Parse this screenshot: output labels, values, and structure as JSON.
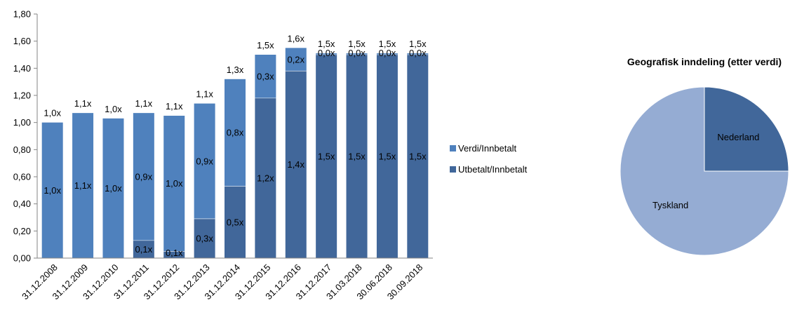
{
  "chart_data": [
    {
      "type": "bar",
      "stacked": true,
      "categories": [
        "31.12.2008",
        "31.12.2009",
        "31.12.2010",
        "31.12.2011",
        "31.12.2012",
        "31.12.2013",
        "31.12.2014",
        "31.12.2015",
        "31.12.2016",
        "31.12.2017",
        "31.03.2018",
        "30.06.2018",
        "30.09.2018"
      ],
      "series": [
        {
          "name": "Utbetalt/Innbetalt",
          "color": "#41679a",
          "values": [
            0.0,
            0.0,
            0.0,
            0.13,
            0.05,
            0.29,
            0.53,
            1.18,
            1.38,
            1.5,
            1.5,
            1.5,
            1.5
          ],
          "labels": [
            "",
            "",
            "",
            "0,1x",
            "0,1x",
            "0,3x",
            "0,5x",
            "1,2x",
            "1,4x",
            "1,5x",
            "1,5x",
            "1,5x",
            "1,5x"
          ]
        },
        {
          "name": "Verdi/Innbetalt",
          "color": "#4f81bd",
          "values": [
            1.0,
            1.07,
            1.03,
            0.94,
            1.0,
            0.85,
            0.79,
            0.32,
            0.17,
            0.01,
            0.01,
            0.01,
            0.01
          ],
          "labels": [
            "1,0x",
            "1,1x",
            "1,0x",
            "0,9x",
            "1,0x",
            "0,9x",
            "0,8x",
            "0,3x",
            "0,2x",
            "0,0x",
            "0,0x",
            "0,0x",
            "0,0x"
          ]
        }
      ],
      "totals": [
        1.0,
        1.07,
        1.03,
        1.07,
        1.05,
        1.14,
        1.32,
        1.5,
        1.55,
        1.51,
        1.51,
        1.51,
        1.51
      ],
      "total_labels": [
        "1,0x",
        "1,1x",
        "1,0x",
        "1,1x",
        "1,1x",
        "1,1x",
        "1,3x",
        "1,5x",
        "1,6x",
        "1,5x",
        "1,5x",
        "1,5x",
        "1,5x"
      ],
      "ylim": [
        0,
        1.8
      ],
      "yticks": [
        "0,00",
        "0,20",
        "0,40",
        "0,60",
        "0,80",
        "1,00",
        "1,20",
        "1,40",
        "1,60",
        "1,80"
      ],
      "legend_position": "right",
      "grid": false
    },
    {
      "type": "pie",
      "title": "Geografisk inndeling (etter verdi)",
      "slices": [
        {
          "label": "Nederland",
          "value": 25,
          "color": "#41679a"
        },
        {
          "label": "Tyskland",
          "value": 75,
          "color": "#95acd3"
        }
      ]
    }
  ]
}
